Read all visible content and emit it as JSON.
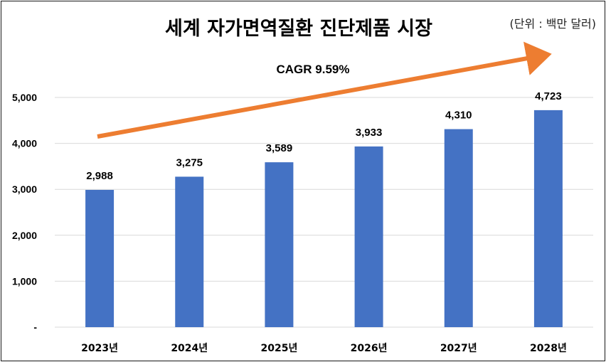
{
  "title": "세계 자가면역질환 진단제품 시장",
  "unit": "(단위 : 백만 달러)",
  "cagr_label": "CAGR 9.59%",
  "colors": {
    "bar": "#4472C4",
    "arrow": "#ED7D31",
    "grid": "#D9D9D9"
  },
  "chart_data": {
    "type": "bar",
    "title": "세계 자가면역질환 진단제품 시장",
    "categories": [
      "2023년",
      "2024년",
      "2025년",
      "2026년",
      "2027년",
      "2028년"
    ],
    "values": [
      2988,
      3275,
      3589,
      3933,
      4310,
      4723
    ],
    "value_labels": [
      "2,988",
      "3,275",
      "3,589",
      "3,933",
      "4,310",
      "4,723"
    ],
    "ylim": [
      0,
      5000
    ],
    "yticks": [
      0,
      1000,
      2000,
      3000,
      4000,
      5000
    ],
    "ytick_labels": [
      "-",
      "1,000",
      "2,000",
      "3,000",
      "4,000",
      "5,000"
    ],
    "grid": true,
    "annotation": "CAGR 9.59%"
  }
}
